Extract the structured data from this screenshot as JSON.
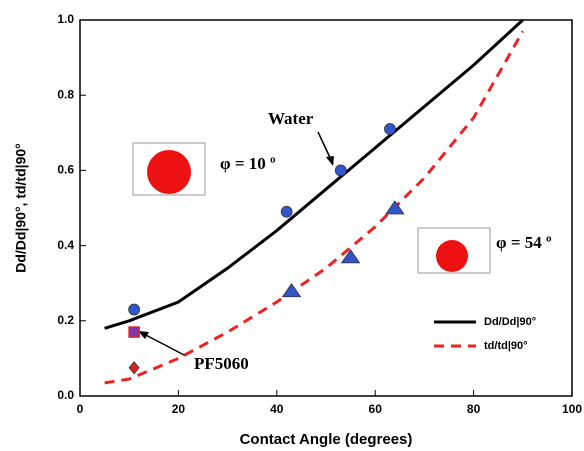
{
  "chart_data": {
    "type": "line",
    "xlabel": "Contact Angle (degrees)",
    "ylabel": "Dd/Dd|90°, td/td|90°",
    "xlim": [
      0,
      100
    ],
    "ylim": [
      0,
      1.0
    ],
    "xticks": [
      0,
      20,
      40,
      60,
      80,
      100
    ],
    "yticks": [
      {
        "value": 0,
        "label": "0.0"
      },
      0.2,
      0.4,
      0.6,
      0.8,
      {
        "value": 1,
        "label": "1.0"
      }
    ],
    "series": [
      {
        "name": "Dd/Dd|90°",
        "color": "#000000",
        "dash": false,
        "x": [
          5,
          10,
          20,
          30,
          40,
          50,
          60,
          70,
          80,
          90
        ],
        "values": [
          0.18,
          0.2,
          0.25,
          0.34,
          0.44,
          0.55,
          0.66,
          0.77,
          0.88,
          1.0
        ]
      },
      {
        "name": "td/td|90°",
        "color": "#ee2222",
        "dash": true,
        "x": [
          5,
          10,
          20,
          30,
          40,
          50,
          60,
          70,
          80,
          90
        ],
        "values": [
          0.035,
          0.045,
          0.1,
          0.17,
          0.25,
          0.34,
          0.45,
          0.58,
          0.74,
          0.97
        ]
      }
    ],
    "markers": [
      {
        "shape": "circle",
        "color": "#3355cc",
        "x": [
          11,
          42,
          53,
          63
        ],
        "values": [
          0.23,
          0.49,
          0.6,
          0.71
        ]
      },
      {
        "shape": "triangle",
        "color": "#3355cc",
        "x": [
          43,
          55,
          64
        ],
        "values": [
          0.28,
          0.37,
          0.5
        ]
      },
      {
        "shape": "square",
        "color": "#8833aa",
        "x": [
          11
        ],
        "values": [
          0.17
        ]
      },
      {
        "shape": "diamond",
        "color": "#dd2222",
        "x": [
          11
        ],
        "values": [
          0.075
        ]
      }
    ],
    "annotations": [
      "Water",
      "φ = 10 º",
      "φ = 54 º",
      "PF5060"
    ],
    "legend": "lower right"
  }
}
